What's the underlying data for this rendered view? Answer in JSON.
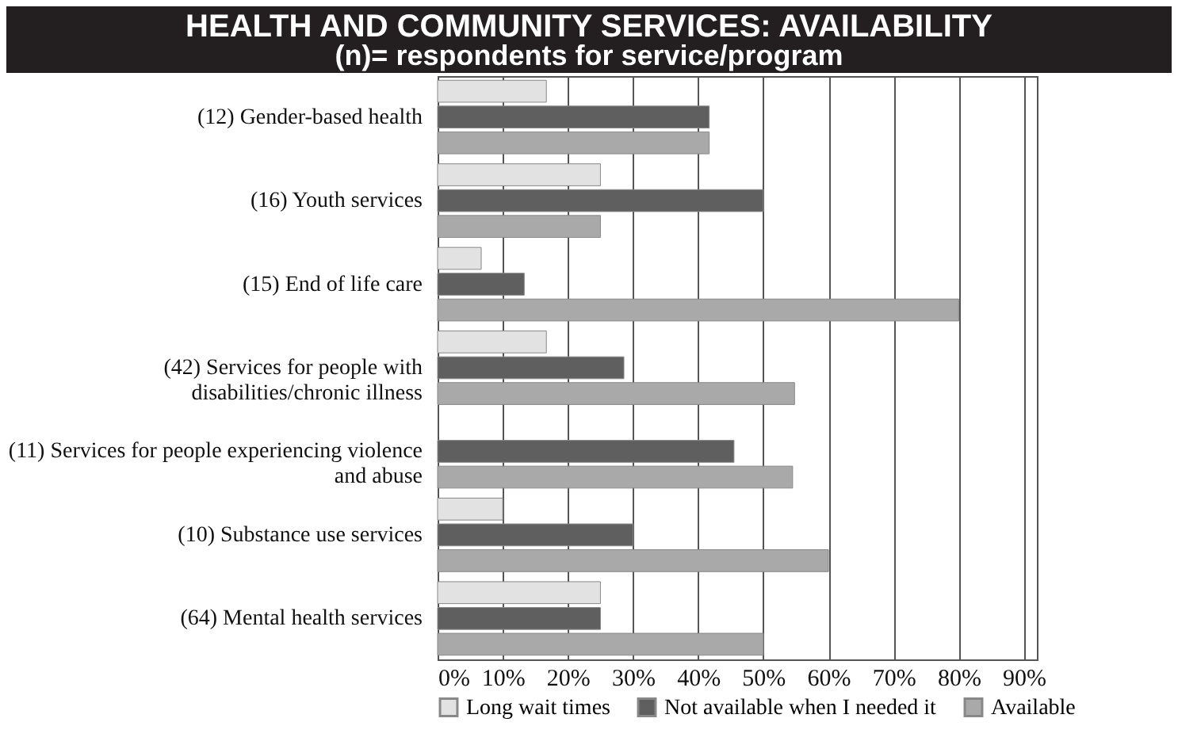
{
  "chart_data": {
    "type": "bar",
    "orientation": "horizontal",
    "title": "HEALTH AND COMMUNITY SERVICES: AVAILABILITY",
    "subtitle": "(n)= respondents for service/program",
    "categories": [
      "(12) Gender-based health",
      "(16) Youth services",
      "(15) End of life care",
      "(42) Services for people with disabilities/chronic illness",
      "(11) Services for people experiencing violence and abuse",
      "(10) Substance use services",
      "(64) Mental health services"
    ],
    "series": [
      {
        "name": "Long wait times",
        "color": "#e2e2e2",
        "values": [
          16.7,
          25,
          6.7,
          16.7,
          null,
          10,
          25
        ]
      },
      {
        "name": "Not available when I needed it",
        "color": "#5f5f5f",
        "values": [
          41.7,
          50,
          13.3,
          28.6,
          45.5,
          30,
          25
        ]
      },
      {
        "name": "Available",
        "color": "#a9a9a9",
        "values": [
          41.7,
          25,
          80,
          54.8,
          54.5,
          60,
          50
        ]
      }
    ],
    "xlim": [
      0,
      92
    ],
    "xticks": [
      {
        "value": 0,
        "label": "0%"
      },
      {
        "value": 10,
        "label": "10%"
      },
      {
        "value": 20,
        "label": "20%"
      },
      {
        "value": 30,
        "label": "30%"
      },
      {
        "value": 40,
        "label": "40%"
      },
      {
        "value": 50,
        "label": "50%"
      },
      {
        "value": 60,
        "label": "60%"
      },
      {
        "value": 70,
        "label": "70%"
      },
      {
        "value": 80,
        "label": "80%"
      },
      {
        "value": 90,
        "label": "90%"
      }
    ],
    "grid": "x",
    "legend": "bottom"
  }
}
